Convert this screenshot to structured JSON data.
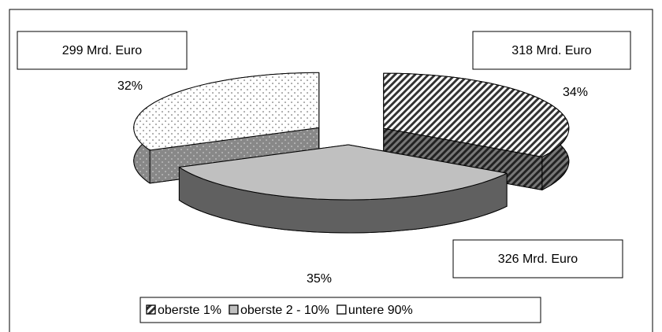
{
  "chart_data": {
    "type": "pie3d",
    "categories": [
      "oberste 1%",
      "oberste 2 - 10%",
      "untere 90%"
    ],
    "values": [
      34,
      35,
      32
    ],
    "value_labels": [
      "34%",
      "35%",
      "32%"
    ],
    "annotations": [
      "318 Mrd. Euro",
      "326 Mrd. Euro",
      "299 Mrd. Euro"
    ],
    "legend": "bottom"
  }
}
